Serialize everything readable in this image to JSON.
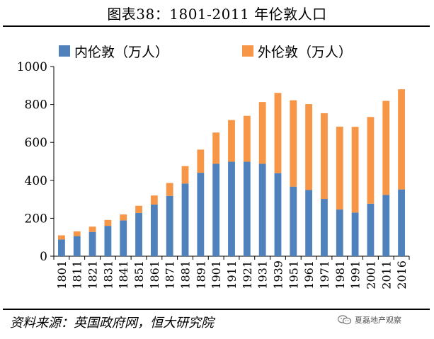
{
  "title": "图表38：1801-2011 年伦敦人口",
  "legend": {
    "inner_label": "内伦敦（万人）",
    "outer_label": "外伦敦（万人）"
  },
  "colors": {
    "inner": "#4F81BD",
    "outer": "#F79646"
  },
  "source": "资料来源：英国政府网，恒大研究院",
  "watermark": "夏磊地产观察",
  "chart_data": {
    "type": "bar",
    "stacked": true,
    "title": "图表38：1801-2011 年伦敦人口",
    "xlabel": "",
    "ylabel": "",
    "ylim": [
      0,
      1000
    ],
    "yticks": [
      0,
      200,
      400,
      600,
      800,
      1000
    ],
    "grid": false,
    "legend_position": "top",
    "categories": [
      "1801",
      "1811",
      "1821",
      "1831",
      "1841",
      "1851",
      "1861",
      "1871",
      "1881",
      "1891",
      "1901",
      "1911",
      "1921",
      "1931",
      "1939",
      "1951",
      "1961",
      "1971",
      "1981",
      "1991",
      "2001",
      "2011",
      "2016"
    ],
    "series": [
      {
        "name": "内伦敦（万人）",
        "values": [
          88,
          106,
          128,
          160,
          189,
          228,
          272,
          318,
          383,
          440,
          487,
          498,
          498,
          487,
          438,
          367,
          349,
          302,
          246,
          230,
          277,
          323,
          352
        ]
      },
      {
        "name": "外伦敦（万人）",
        "values": [
          22,
          25,
          28,
          31,
          31,
          38,
          48,
          68,
          92,
          122,
          165,
          220,
          242,
          326,
          423,
          455,
          453,
          452,
          437,
          452,
          457,
          496,
          528
        ]
      }
    ]
  }
}
